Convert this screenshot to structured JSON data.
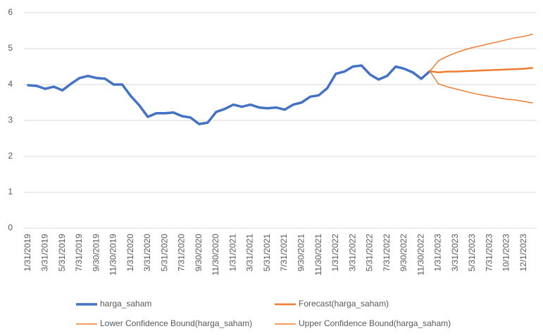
{
  "chart_data": {
    "type": "line",
    "categories": [
      "1/31/2019",
      null,
      "3/31/2019",
      null,
      "5/31/2019",
      null,
      "7/31/2019",
      null,
      "9/30/2019",
      null,
      "11/30/2019",
      null,
      "1/31/2020",
      null,
      "3/31/2020",
      null,
      "5/31/2020",
      null,
      "7/31/2020",
      null,
      "9/30/2020",
      null,
      "11/30/2020",
      null,
      "1/31/2021",
      null,
      "3/31/2021",
      null,
      "5/31/2021",
      null,
      "7/31/2021",
      null,
      "9/30/2021",
      null,
      "11/30/2021",
      null,
      "1/31/2022",
      null,
      "3/31/2022",
      null,
      "5/31/2022",
      null,
      "7/31/2022",
      null,
      "9/30/2022",
      null,
      "11/30/2022",
      null,
      "1/31/2023",
      null,
      "3/31/2023",
      null,
      "5/31/2023",
      null,
      "7/31/2023",
      null,
      "10/1/2023",
      null,
      "12/1/2023",
      null
    ],
    "series": [
      {
        "name": "harga_saham",
        "color": "#4472c4",
        "width": 3.5,
        "values": [
          3.98,
          3.96,
          3.88,
          3.94,
          3.84,
          4.02,
          4.18,
          4.24,
          4.18,
          4.16,
          4.0,
          4.0,
          3.68,
          3.42,
          3.1,
          3.2,
          3.2,
          3.22,
          3.12,
          3.08,
          2.9,
          2.94,
          3.24,
          3.32,
          3.44,
          3.38,
          3.44,
          3.36,
          3.34,
          3.36,
          3.3,
          3.44,
          3.5,
          3.66,
          3.7,
          3.9,
          4.3,
          4.36,
          4.5,
          4.53,
          4.28,
          4.14,
          4.24,
          4.5,
          4.44,
          4.34,
          4.16,
          4.37,
          null,
          null,
          null,
          null,
          null,
          null,
          null,
          null,
          null,
          null,
          null,
          null
        ]
      },
      {
        "name": "Forecast(harga_saham)",
        "color": "#ed7d31",
        "width": 2.5,
        "values": [
          null,
          null,
          null,
          null,
          null,
          null,
          null,
          null,
          null,
          null,
          null,
          null,
          null,
          null,
          null,
          null,
          null,
          null,
          null,
          null,
          null,
          null,
          null,
          null,
          null,
          null,
          null,
          null,
          null,
          null,
          null,
          null,
          null,
          null,
          null,
          null,
          null,
          null,
          null,
          null,
          null,
          null,
          null,
          null,
          null,
          null,
          null,
          4.37,
          4.34,
          4.36,
          4.36,
          4.37,
          4.38,
          4.39,
          4.4,
          4.41,
          4.42,
          4.43,
          4.44,
          4.46
        ]
      },
      {
        "name": "Lower Confidence Bound(harga_saham)",
        "color": "#ed7d31",
        "width": 1.5,
        "values": [
          null,
          null,
          null,
          null,
          null,
          null,
          null,
          null,
          null,
          null,
          null,
          null,
          null,
          null,
          null,
          null,
          null,
          null,
          null,
          null,
          null,
          null,
          null,
          null,
          null,
          null,
          null,
          null,
          null,
          null,
          null,
          null,
          null,
          null,
          null,
          null,
          null,
          null,
          null,
          null,
          null,
          null,
          null,
          null,
          null,
          null,
          null,
          4.37,
          4.02,
          3.94,
          3.88,
          3.82,
          3.76,
          3.71,
          3.67,
          3.63,
          3.59,
          3.57,
          3.53,
          3.49
        ]
      },
      {
        "name": "Upper Confidence Bound(harga_saham)",
        "color": "#ed7d31",
        "width": 1.5,
        "values": [
          null,
          null,
          null,
          null,
          null,
          null,
          null,
          null,
          null,
          null,
          null,
          null,
          null,
          null,
          null,
          null,
          null,
          null,
          null,
          null,
          null,
          null,
          null,
          null,
          null,
          null,
          null,
          null,
          null,
          null,
          null,
          null,
          null,
          null,
          null,
          null,
          null,
          null,
          null,
          null,
          null,
          null,
          null,
          null,
          null,
          null,
          null,
          4.37,
          4.66,
          4.78,
          4.88,
          4.96,
          5.03,
          5.08,
          5.14,
          5.19,
          5.25,
          5.3,
          5.34,
          5.4
        ]
      }
    ],
    "ylim": [
      0,
      6
    ],
    "yticks": [
      0,
      1,
      2,
      3,
      4,
      5,
      6
    ],
    "grid": true,
    "legend": "bottom"
  }
}
